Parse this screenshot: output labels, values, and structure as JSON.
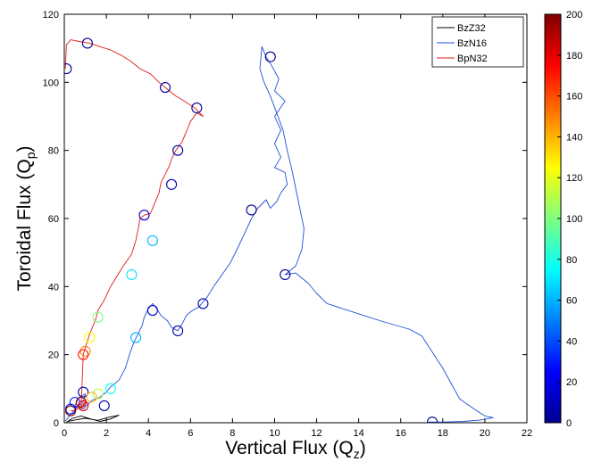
{
  "chart_data": {
    "type": "line",
    "xlabel": "Vertical Flux (Q",
    "xlabel_sub": "z",
    "xlabel_end": ")",
    "ylabel": "Toroidal Flux (Q",
    "ylabel_sub": "p",
    "ylabel_end": ")",
    "xlim": [
      0,
      22
    ],
    "ylim": [
      0,
      120
    ],
    "xticks": [
      0,
      2,
      4,
      6,
      8,
      10,
      12,
      14,
      16,
      18,
      20,
      22
    ],
    "yticks": [
      0,
      20,
      40,
      60,
      80,
      100,
      120
    ],
    "legend_position": "top-right",
    "colorbar": {
      "min": 0,
      "max": 200,
      "ticks": [
        0,
        20,
        40,
        60,
        80,
        100,
        120,
        140,
        160,
        180,
        200
      ],
      "colormap": "jet"
    },
    "series": [
      {
        "name": "BzZ32",
        "color": "#000000",
        "points": [
          [
            0.1,
            0.3
          ],
          [
            0.5,
            0.8
          ],
          [
            1.0,
            1.3
          ],
          [
            1.6,
            0.7
          ],
          [
            2.1,
            1.6
          ],
          [
            2.6,
            2.2
          ],
          [
            2.2,
            1.1
          ],
          [
            1.7,
            0.4
          ],
          [
            1.2,
            1.2
          ],
          [
            0.8,
            2.0
          ],
          [
            0.4,
            1.3
          ],
          [
            0.2,
            0.6
          ]
        ]
      },
      {
        "name": "BzN16",
        "color": "#1f4fd6",
        "points": [
          [
            0.05,
            0.5
          ],
          [
            0.3,
            2.5
          ],
          [
            0.6,
            4.5
          ],
          [
            0.9,
            6.0
          ],
          [
            1.0,
            8.5
          ],
          [
            0.7,
            7.5
          ],
          [
            0.5,
            5.0
          ],
          [
            0.9,
            4.0
          ],
          [
            1.3,
            6.5
          ],
          [
            1.7,
            7.5
          ],
          [
            2.0,
            9.0
          ],
          [
            2.2,
            10.5
          ],
          [
            2.6,
            12.5
          ],
          [
            2.9,
            16.0
          ],
          [
            3.1,
            20.0
          ],
          [
            3.3,
            23.5
          ],
          [
            3.5,
            26.0
          ],
          [
            3.7,
            28.5
          ],
          [
            3.8,
            31.0
          ],
          [
            4.0,
            33.5
          ],
          [
            4.2,
            35.0
          ],
          [
            4.4,
            33.5
          ],
          [
            4.6,
            31.5
          ],
          [
            4.9,
            30.0
          ],
          [
            5.1,
            28.0
          ],
          [
            5.4,
            27.0
          ],
          [
            5.6,
            29.0
          ],
          [
            5.8,
            31.5
          ],
          [
            6.1,
            33.0
          ],
          [
            6.4,
            34.0
          ],
          [
            6.8,
            37.0
          ],
          [
            7.1,
            40.0
          ],
          [
            7.5,
            43.5
          ],
          [
            7.9,
            47.0
          ],
          [
            8.3,
            52.0
          ],
          [
            8.6,
            56.0
          ],
          [
            8.9,
            60.0
          ],
          [
            9.2,
            63.0
          ],
          [
            9.6,
            65.5
          ],
          [
            9.8,
            63.0
          ],
          [
            10.1,
            65.0
          ],
          [
            10.3,
            67.5
          ],
          [
            10.6,
            70.0
          ],
          [
            10.5,
            73.5
          ],
          [
            10.0,
            75.0
          ],
          [
            10.3,
            78.0
          ],
          [
            10.0,
            82.0
          ],
          [
            10.3,
            86.0
          ],
          [
            10.0,
            90.0
          ],
          [
            10.5,
            94.5
          ],
          [
            10.0,
            97.5
          ],
          [
            10.2,
            101.0
          ],
          [
            9.9,
            104.5
          ],
          [
            9.6,
            107.5
          ],
          [
            9.4,
            110.5
          ],
          [
            9.3,
            104.0
          ],
          [
            9.5,
            100.0
          ],
          [
            9.8,
            96.0
          ],
          [
            10.1,
            91.0
          ],
          [
            10.4,
            86.0
          ],
          [
            10.6,
            80.0
          ],
          [
            10.8,
            75.0
          ],
          [
            11.0,
            69.0
          ],
          [
            11.2,
            63.0
          ],
          [
            11.4,
            57.0
          ],
          [
            11.3,
            51.0
          ],
          [
            11.0,
            46.0
          ],
          [
            10.5,
            43.5
          ],
          [
            11.0,
            44.0
          ],
          [
            11.6,
            41.0
          ],
          [
            12.0,
            38.0
          ],
          [
            12.5,
            35.0
          ],
          [
            14.0,
            32.0
          ],
          [
            15.0,
            30.0
          ],
          [
            16.4,
            27.5
          ],
          [
            17.0,
            25.5
          ],
          [
            18.0,
            16.0
          ],
          [
            18.8,
            7.0
          ],
          [
            19.5,
            4.0
          ],
          [
            20.0,
            2.0
          ],
          [
            20.4,
            1.5
          ],
          [
            19.8,
            0.8
          ],
          [
            19.0,
            0.4
          ],
          [
            18.0,
            0.2
          ],
          [
            17.3,
            0.2
          ]
        ]
      },
      {
        "name": "BpN32",
        "color": "#e11a1a",
        "points": [
          [
            0.3,
            3.5
          ],
          [
            0.5,
            3.5
          ],
          [
            0.8,
            4.8
          ],
          [
            1.0,
            6.0
          ],
          [
            0.9,
            5.0
          ],
          [
            0.8,
            4.2
          ],
          [
            0.9,
            20.0
          ],
          [
            1.0,
            22.0
          ],
          [
            1.2,
            26.0
          ],
          [
            1.5,
            30.5
          ],
          [
            1.6,
            33.0
          ],
          [
            1.9,
            36.0
          ],
          [
            2.2,
            40.0
          ],
          [
            2.5,
            43.0
          ],
          [
            2.8,
            46.0
          ],
          [
            3.2,
            49.5
          ],
          [
            3.4,
            53.5
          ],
          [
            3.5,
            56.5
          ],
          [
            3.6,
            60.0
          ],
          [
            3.8,
            61.0
          ],
          [
            4.1,
            61.5
          ],
          [
            4.3,
            64.5
          ],
          [
            4.5,
            67.5
          ],
          [
            4.6,
            70.5
          ],
          [
            4.8,
            73.0
          ],
          [
            5.0,
            75.5
          ],
          [
            5.1,
            77.5
          ],
          [
            5.3,
            80.0
          ],
          [
            5.6,
            82.5
          ],
          [
            5.8,
            85.5
          ],
          [
            6.0,
            88.5
          ],
          [
            6.3,
            91.0
          ],
          [
            6.6,
            90.0
          ],
          [
            6.2,
            92.5
          ],
          [
            5.7,
            94.5
          ],
          [
            5.3,
            96.0
          ],
          [
            4.9,
            98.0
          ],
          [
            4.5,
            100.0
          ],
          [
            4.1,
            102.5
          ],
          [
            3.6,
            104.0
          ],
          [
            3.2,
            106.0
          ],
          [
            2.7,
            108.0
          ],
          [
            2.2,
            109.5
          ],
          [
            1.7,
            110.5
          ],
          [
            1.2,
            111.5
          ],
          [
            0.7,
            112.0
          ],
          [
            0.3,
            112.5
          ],
          [
            0.1,
            111.0
          ],
          [
            0.05,
            104.0
          ]
        ]
      }
    ],
    "markers": [
      {
        "x": 17.5,
        "y": 0.2,
        "v": 2
      },
      {
        "x": 10.5,
        "y": 43.5,
        "v": 3
      },
      {
        "x": 9.8,
        "y": 107.5,
        "v": 4
      },
      {
        "x": 8.9,
        "y": 62.5,
        "v": 5
      },
      {
        "x": 6.6,
        "y": 35.0,
        "v": 8
      },
      {
        "x": 5.4,
        "y": 27.0,
        "v": 10
      },
      {
        "x": 4.2,
        "y": 33.0,
        "v": 12
      },
      {
        "x": 3.4,
        "y": 25.0,
        "v": 60
      },
      {
        "x": 2.2,
        "y": 10.0,
        "v": 75
      },
      {
        "x": 1.6,
        "y": 8.5,
        "v": 110
      },
      {
        "x": 1.9,
        "y": 5.0,
        "v": 8
      },
      {
        "x": 0.9,
        "y": 9.0,
        "v": 8
      },
      {
        "x": 0.5,
        "y": 6.0,
        "v": 35
      },
      {
        "x": 0.3,
        "y": 4.0,
        "v": 20
      },
      {
        "x": 0.1,
        "y": 104.0,
        "v": 2
      },
      {
        "x": 1.1,
        "y": 111.5,
        "v": 3
      },
      {
        "x": 4.8,
        "y": 98.5,
        "v": 5
      },
      {
        "x": 6.3,
        "y": 92.5,
        "v": 6
      },
      {
        "x": 5.4,
        "y": 80.0,
        "v": 7
      },
      {
        "x": 5.1,
        "y": 70.0,
        "v": 9
      },
      {
        "x": 3.8,
        "y": 61.0,
        "v": 12
      },
      {
        "x": 4.2,
        "y": 53.5,
        "v": 60
      },
      {
        "x": 3.2,
        "y": 43.5,
        "v": 70
      },
      {
        "x": 1.6,
        "y": 31.0,
        "v": 100
      },
      {
        "x": 1.2,
        "y": 25.0,
        "v": 125
      },
      {
        "x": 1.0,
        "y": 21.0,
        "v": 150
      },
      {
        "x": 0.9,
        "y": 20.0,
        "v": 170
      },
      {
        "x": 1.3,
        "y": 7.5,
        "v": 140
      },
      {
        "x": 0.8,
        "y": 6.0,
        "v": 190
      },
      {
        "x": 0.9,
        "y": 5.0,
        "v": 180
      },
      {
        "x": 0.3,
        "y": 3.5,
        "v": 200
      }
    ]
  }
}
